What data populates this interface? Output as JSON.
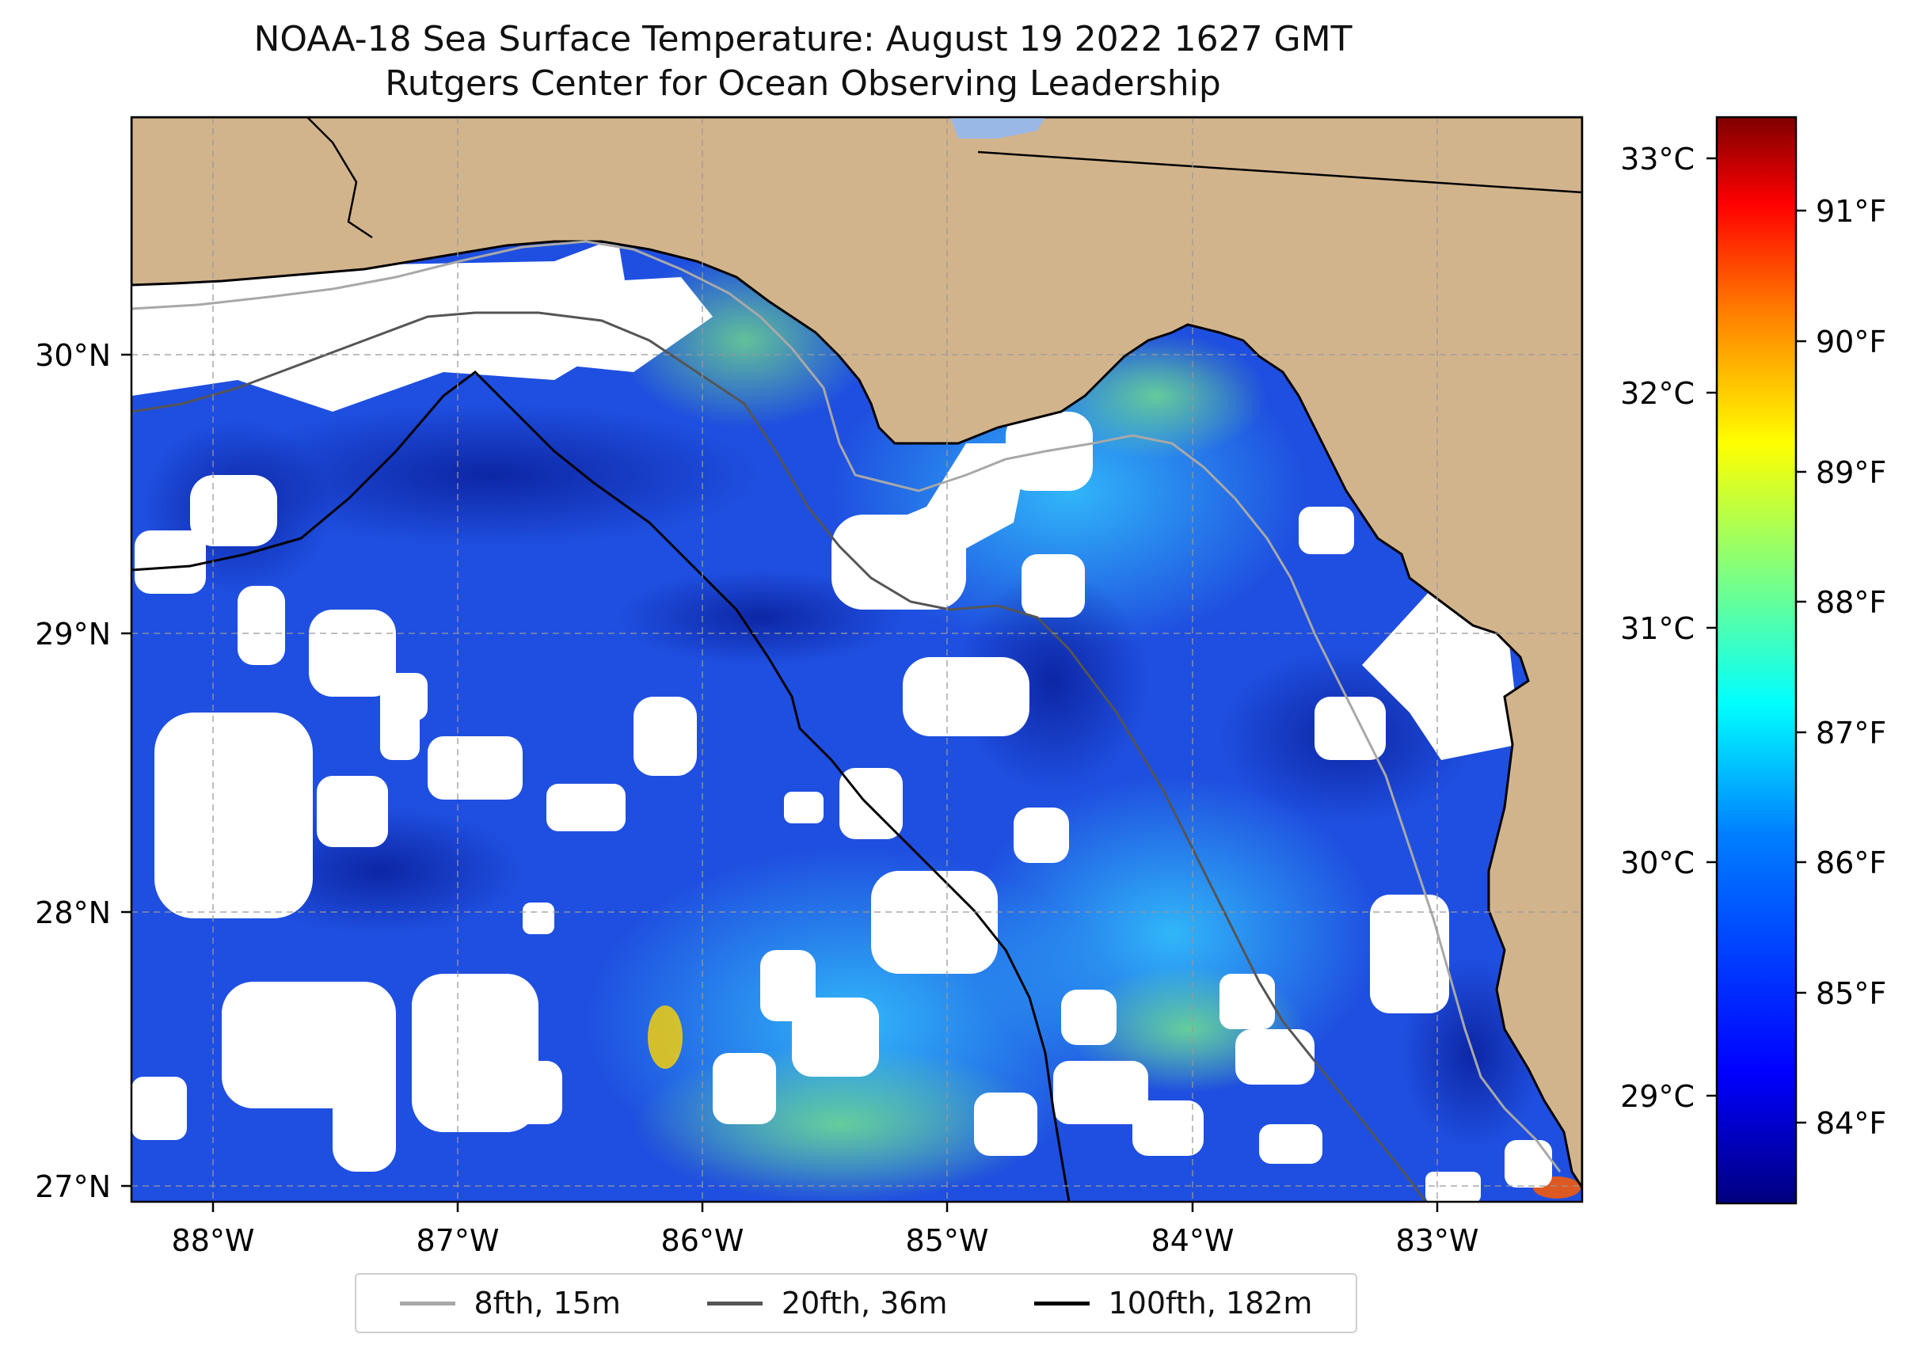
{
  "title": {
    "line1": "NOAA-18 Sea Surface Temperature: August 19 2022 1627 GMT",
    "line2": "Rutgers Center for Ocean Observing Leadership"
  },
  "map": {
    "lon_labels": [
      "88°W",
      "87°W",
      "86°W",
      "85°W",
      "84°W",
      "83°W"
    ],
    "lat_labels": [
      "30°N",
      "29°N",
      "28°N",
      "27°N"
    ],
    "colors": {
      "land": "#d2b48c",
      "ocean_base": "#1f4fe0",
      "cloud": "#ffffff",
      "lake": "#9ab8e6"
    }
  },
  "colorbar": {
    "celsius_labels": [
      "33°C",
      "32°C",
      "31°C",
      "30°C",
      "29°C"
    ],
    "fahrenheit_labels": [
      "91°F",
      "90°F",
      "89°F",
      "88°F",
      "87°F",
      "86°F",
      "85°F",
      "84°F"
    ],
    "colors": [
      "#00007f",
      "#0000ff",
      "#007fff",
      "#00ffff",
      "#7fff7f",
      "#ffff00",
      "#ff7f00",
      "#ff0000",
      "#7f0000"
    ]
  },
  "legend": [
    {
      "label": "8fth, 15m",
      "color": "#a8a8a8"
    },
    {
      "label": "20fth, 36m",
      "color": "#555555"
    },
    {
      "label": "100fth, 182m",
      "color": "#000000"
    }
  ]
}
